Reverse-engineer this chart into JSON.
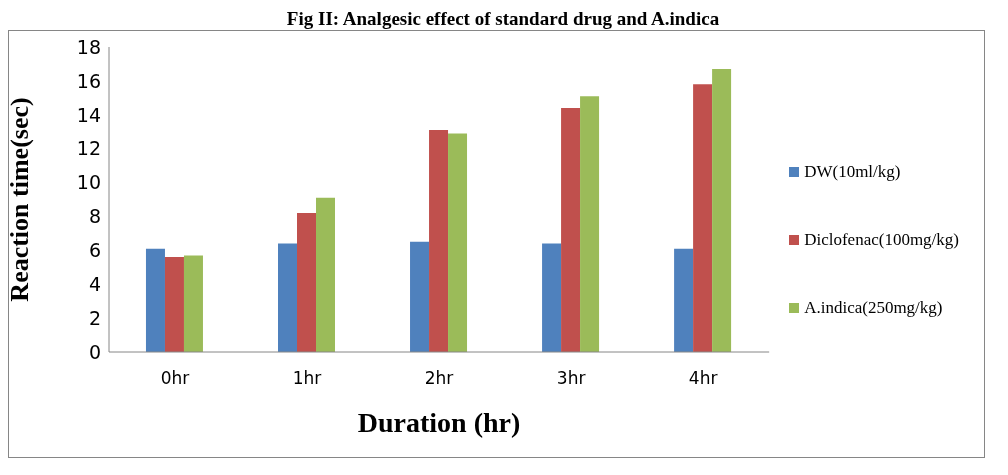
{
  "chart_data": {
    "type": "bar",
    "title": "Fig II: Analgesic effect of standard drug and A.indica",
    "xlabel": "Duration (hr)",
    "ylabel": "Reaction time(sec)",
    "categories": [
      "0hr",
      "1hr",
      "2hr",
      "3hr",
      "4hr"
    ],
    "series": [
      {
        "name": "DW(10ml/kg)",
        "color": "#4f81bd",
        "values": [
          6.1,
          6.4,
          6.5,
          6.4,
          6.1
        ]
      },
      {
        "name": "Diclofenac(100mg/kg)",
        "color": "#c0504d",
        "values": [
          5.6,
          8.2,
          13.1,
          14.4,
          15.8
        ]
      },
      {
        "name": "A.indica(250mg/kg)",
        "color": "#9bbb59",
        "values": [
          5.7,
          9.1,
          12.9,
          15.1,
          16.7
        ]
      }
    ],
    "ylim": [
      0,
      18
    ],
    "yticks": [
      0,
      2,
      4,
      6,
      8,
      10,
      12,
      14,
      16,
      18
    ],
    "grid": false,
    "legend": "right"
  }
}
